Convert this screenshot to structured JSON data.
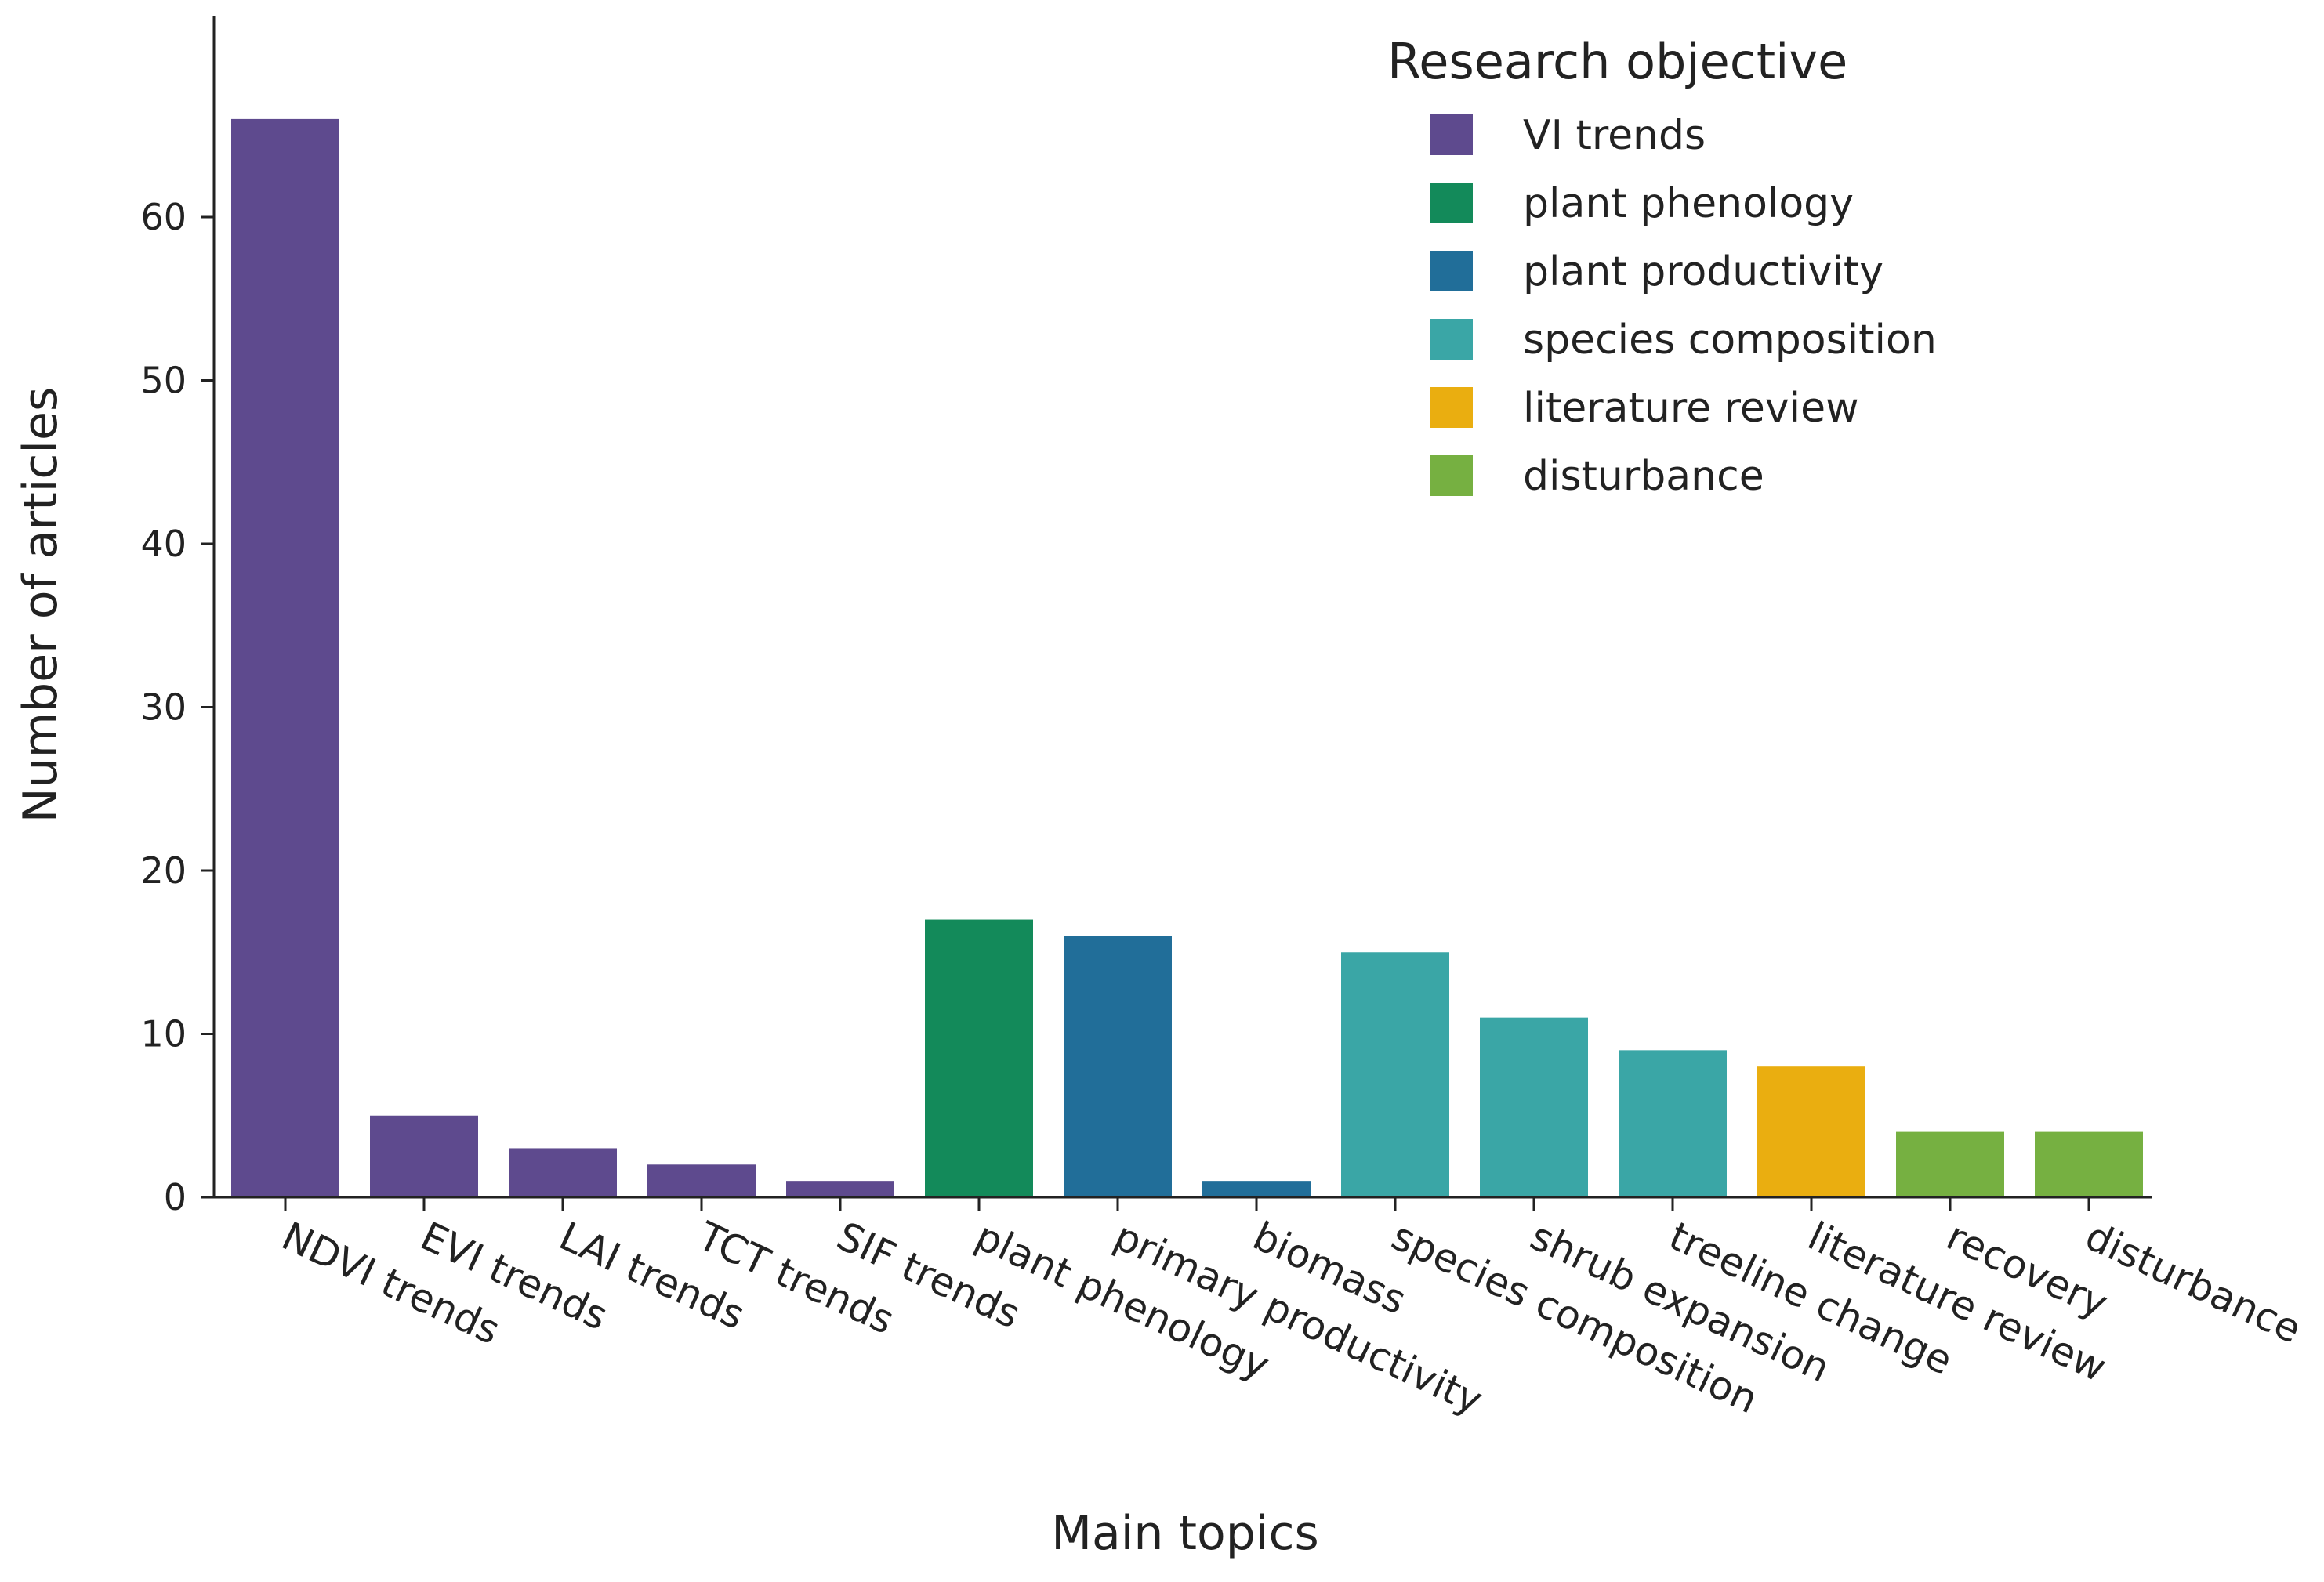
{
  "chart_data": {
    "type": "bar",
    "title": "",
    "xlabel": "Main topics",
    "ylabel": "Number of articles",
    "ylim": [
      0,
      70
    ],
    "yticks": [
      0,
      10,
      20,
      30,
      40,
      50,
      60
    ],
    "grid": false,
    "legend_position": "top-right",
    "legend": {
      "title": "Research objective",
      "entries": [
        {
          "name": "VI trends",
          "color": "#5e4a8e"
        },
        {
          "name": "plant phenology",
          "color": "#138a5a"
        },
        {
          "name": "plant productivity",
          "color": "#216e99"
        },
        {
          "name": "species composition",
          "color": "#3aa6a6"
        },
        {
          "name": "literature review",
          "color": "#eaae10"
        },
        {
          "name": "disturbance",
          "color": "#76b041"
        }
      ]
    },
    "categories": [
      "NDVI trends",
      "EVI trends",
      "LAI trends",
      "TCT trends",
      "SIF trends",
      "plant phenology",
      "primary productivity",
      "biomass",
      "species composition",
      "shrub expansion",
      "treeline change",
      "literature review",
      "recovery",
      "disturbance"
    ],
    "values": [
      66,
      5,
      3,
      2,
      1,
      17,
      16,
      1,
      15,
      11,
      9,
      8,
      4,
      4
    ],
    "groups": [
      "VI trends",
      "VI trends",
      "VI trends",
      "VI trends",
      "VI trends",
      "plant phenology",
      "plant productivity",
      "plant productivity",
      "species composition",
      "species composition",
      "species composition",
      "literature review",
      "disturbance",
      "disturbance"
    ]
  }
}
